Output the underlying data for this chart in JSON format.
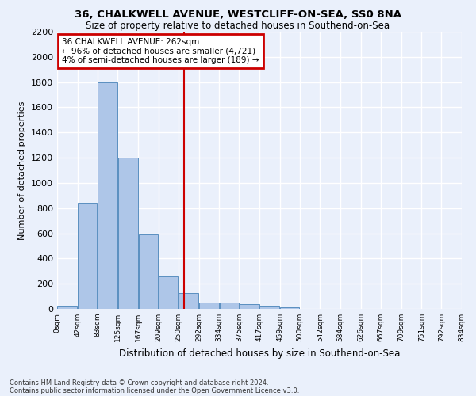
{
  "title1": "36, CHALKWELL AVENUE, WESTCLIFF-ON-SEA, SS0 8NA",
  "title2": "Size of property relative to detached houses in Southend-on-Sea",
  "xlabel": "Distribution of detached houses by size in Southend-on-Sea",
  "ylabel": "Number of detached properties",
  "footnote1": "Contains HM Land Registry data © Crown copyright and database right 2024.",
  "footnote2": "Contains public sector information licensed under the Open Government Licence v3.0.",
  "annotation_line1": "36 CHALKWELL AVENUE: 262sqm",
  "annotation_line2": "← 96% of detached houses are smaller (4,721)",
  "annotation_line3": "4% of semi-detached houses are larger (189) →",
  "bar_color": "#aec6e8",
  "bar_edge_color": "#5a8fc0",
  "vline_color": "#cc0000",
  "vline_x": 262,
  "bin_edges": [
    0,
    42,
    83,
    125,
    167,
    209,
    250,
    292,
    334,
    375,
    417,
    459,
    500,
    542,
    584,
    626,
    667,
    709,
    751,
    792,
    834
  ],
  "bar_heights": [
    25,
    845,
    1800,
    1200,
    590,
    260,
    125,
    50,
    48,
    35,
    28,
    15,
    0,
    0,
    0,
    0,
    0,
    0,
    0,
    0
  ],
  "ylim": [
    0,
    2200
  ],
  "yticks": [
    0,
    200,
    400,
    600,
    800,
    1000,
    1200,
    1400,
    1600,
    1800,
    2000,
    2200
  ],
  "xtick_labels": [
    "0sqm",
    "42sqm",
    "83sqm",
    "125sqm",
    "167sqm",
    "209sqm",
    "250sqm",
    "292sqm",
    "334sqm",
    "375sqm",
    "417sqm",
    "459sqm",
    "500sqm",
    "542sqm",
    "584sqm",
    "626sqm",
    "667sqm",
    "709sqm",
    "751sqm",
    "792sqm",
    "834sqm"
  ],
  "bg_color": "#eaf0fb",
  "plot_bg_color": "#eaf0fb",
  "grid_color": "#ffffff",
  "annotation_box_color": "#cc0000",
  "annotation_bg_color": "#ffffff"
}
